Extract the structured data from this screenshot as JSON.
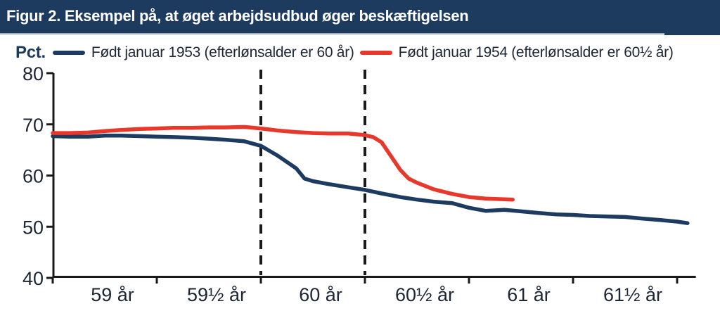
{
  "theme": {
    "title_bar_bg": "#1d3a5f",
    "title_text_color": "#ffffff",
    "axis_color": "#1a1a1a",
    "tick_label_color": "#1c2634"
  },
  "chart_data": {
    "type": "line",
    "title": "Figur 2. Eksempel på, at øget arbejdsudbud øger beskæftigelsen",
    "ylabel": "Pct.",
    "ylim": [
      40,
      80
    ],
    "y_ticks": [
      80,
      70,
      60,
      50,
      40
    ],
    "xlim": [
      59,
      62.09
    ],
    "x_unit": "alder",
    "x_tick_marks": [
      59,
      59.5,
      60,
      60.5,
      61,
      61.5,
      62
    ],
    "x_interval_labels": [
      {
        "label": "59 år",
        "start": 59
      },
      {
        "label": "59½ år",
        "start": 59.5
      },
      {
        "label": "60 år",
        "start": 60
      },
      {
        "label": "60½ år",
        "start": 60.5
      },
      {
        "label": "61 år",
        "start": 61
      },
      {
        "label": "61½ år",
        "start": 61.5
      }
    ],
    "dashed_vlines": [
      60,
      60.5
    ],
    "grid": false,
    "legend_position": "top",
    "series": [
      {
        "name": "Født januar 1953 (efterlønsalder er 60 år)",
        "color": "#1d3b60",
        "points": [
          [
            59,
            67.7
          ],
          [
            59.08,
            67.6
          ],
          [
            59.17,
            67.6
          ],
          [
            59.25,
            67.8
          ],
          [
            59.33,
            67.8
          ],
          [
            59.42,
            67.7
          ],
          [
            59.5,
            67.6
          ],
          [
            59.58,
            67.5
          ],
          [
            59.67,
            67.4
          ],
          [
            59.75,
            67.2
          ],
          [
            59.83,
            67.0
          ],
          [
            59.92,
            66.7
          ],
          [
            60,
            65.8
          ],
          [
            60.08,
            63.9
          ],
          [
            60.17,
            61.4
          ],
          [
            60.21,
            59.4
          ],
          [
            60.25,
            58.9
          ],
          [
            60.33,
            58.3
          ],
          [
            60.42,
            57.7
          ],
          [
            60.5,
            57.2
          ],
          [
            60.58,
            56.5
          ],
          [
            60.67,
            55.8
          ],
          [
            60.75,
            55.3
          ],
          [
            60.83,
            54.9
          ],
          [
            60.92,
            54.6
          ],
          [
            61,
            53.7
          ],
          [
            61.08,
            53.1
          ],
          [
            61.17,
            53.3
          ],
          [
            61.25,
            53.0
          ],
          [
            61.33,
            52.7
          ],
          [
            61.42,
            52.4
          ],
          [
            61.5,
            52.3
          ],
          [
            61.58,
            52.1
          ],
          [
            61.67,
            52.0
          ],
          [
            61.75,
            51.9
          ],
          [
            61.83,
            51.6
          ],
          [
            61.92,
            51.3
          ],
          [
            62,
            51.0
          ],
          [
            62.05,
            50.7
          ]
        ]
      },
      {
        "name": "Født januar 1954 (efterlønsalder er 60½ år)",
        "color": "#e8382c",
        "points": [
          [
            59,
            68.3
          ],
          [
            59.08,
            68.3
          ],
          [
            59.17,
            68.4
          ],
          [
            59.25,
            68.7
          ],
          [
            59.33,
            68.9
          ],
          [
            59.42,
            69.1
          ],
          [
            59.5,
            69.2
          ],
          [
            59.58,
            69.3
          ],
          [
            59.67,
            69.3
          ],
          [
            59.75,
            69.4
          ],
          [
            59.83,
            69.4
          ],
          [
            59.92,
            69.5
          ],
          [
            60,
            69.2
          ],
          [
            60.08,
            68.8
          ],
          [
            60.17,
            68.5
          ],
          [
            60.25,
            68.3
          ],
          [
            60.33,
            68.2
          ],
          [
            60.42,
            68.2
          ],
          [
            60.5,
            67.9
          ],
          [
            60.54,
            67.5
          ],
          [
            60.58,
            66.5
          ],
          [
            60.67,
            61.1
          ],
          [
            60.71,
            59.4
          ],
          [
            60.75,
            58.6
          ],
          [
            60.83,
            57.3
          ],
          [
            60.92,
            56.4
          ],
          [
            61,
            55.8
          ],
          [
            61.08,
            55.5
          ],
          [
            61.17,
            55.35
          ],
          [
            61.21,
            55.3
          ]
        ]
      }
    ]
  }
}
